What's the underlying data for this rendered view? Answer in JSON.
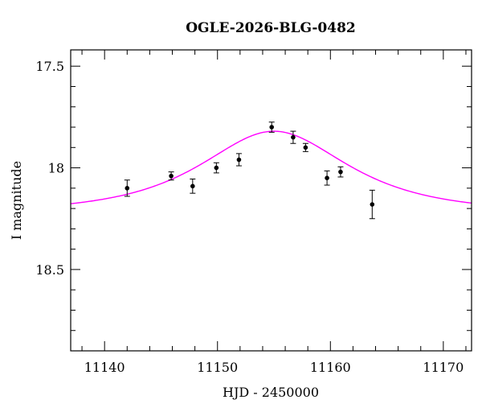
{
  "chart_data": {
    "type": "scatter",
    "title": "OGLE-2026-BLG-0482",
    "xlabel": "HJD - 2450000",
    "ylabel": "I magnitude",
    "xlim": [
      11137,
      11172.5
    ],
    "ylim": [
      18.9,
      17.42
    ],
    "y_inverted": true,
    "grid": false,
    "x_ticks": [
      11140,
      11150,
      11160,
      11170
    ],
    "x_tick_labels": [
      "11140",
      "11150",
      "11160",
      "11170"
    ],
    "x_minor_step": 2,
    "y_ticks": [
      17.5,
      18,
      18.5
    ],
    "y_tick_labels": [
      "17.5",
      "18",
      "18.5"
    ],
    "y_minor_step": 0.1,
    "series": [
      {
        "kind": "points_with_errors",
        "color": "#000000",
        "x": [
          11142.0,
          11145.9,
          11147.8,
          11149.9,
          11151.9,
          11154.8,
          11156.7,
          11157.8,
          11159.7,
          11160.9,
          11163.7
        ],
        "y": [
          18.1,
          18.04,
          18.09,
          18.0,
          17.96,
          17.8,
          17.85,
          17.9,
          18.05,
          18.02,
          18.18
        ],
        "yerr": [
          0.04,
          0.02,
          0.035,
          0.025,
          0.03,
          0.025,
          0.03,
          0.02,
          0.035,
          0.025,
          0.07
        ]
      },
      {
        "kind": "model_curve",
        "color": "#ff00ff",
        "model": {
          "t0": 11155.0,
          "u0": 0.9,
          "tE": 9.0,
          "baseline": 18.22,
          "peak": 17.82
        }
      }
    ]
  }
}
